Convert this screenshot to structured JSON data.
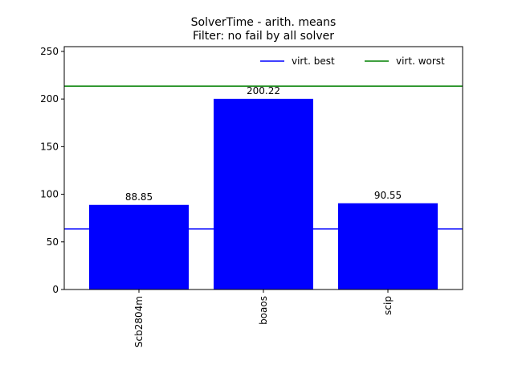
{
  "chart_data": {
    "type": "bar",
    "title": "SolverTime - arith. means",
    "subtitle": "Filter: no fail by all solver",
    "categories": [
      "Scb2804m",
      "boaos",
      "scip"
    ],
    "values": [
      88.85,
      200.22,
      90.55
    ],
    "value_labels": [
      "88.85",
      "200.22",
      "90.55"
    ],
    "bar_color": "#0000ff",
    "ylim": [
      0,
      255
    ],
    "yticks": [
      0,
      50,
      100,
      150,
      200,
      250
    ],
    "xlabel": "",
    "ylabel": "",
    "grid": false,
    "reference_lines": [
      {
        "name": "virt. best",
        "value": 63.5,
        "color": "#0000ff"
      },
      {
        "name": "virt. worst",
        "value": 213.5,
        "color": "#008000"
      }
    ],
    "legend": {
      "placement": "top-right",
      "columns": 2
    }
  }
}
